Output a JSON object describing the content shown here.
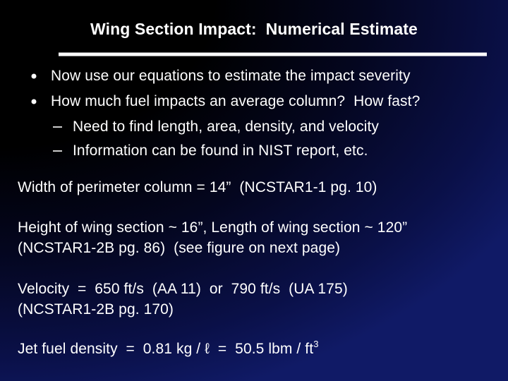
{
  "title": "Wing Section Impact:  Numerical Estimate",
  "bullets": [
    "Now use our equations to estimate the impact severity",
    "How much fuel impacts an average column?  How fast?"
  ],
  "sub_bullets": [
    "Need to find length, area, density, and velocity",
    "Information can be found in NIST report, etc."
  ],
  "paragraphs": [
    [
      "Width of perimeter column = 14”  (NCSTAR1-1 pg. 10)"
    ],
    [
      "Height of wing section ~ 16”, Length of wing section ~ 120”",
      "(NCSTAR1-2B pg. 86)  (see figure on next page)"
    ],
    [
      "Velocity  =  650 ft/s  (AA 11)  or  790 ft/s  (UA 175)",
      "(NCSTAR1-2B pg. 170)"
    ]
  ],
  "density": {
    "text": "Jet fuel density  =  0.81 kg / ℓ  =  50.5 lbm / ft",
    "superscript": "3"
  }
}
